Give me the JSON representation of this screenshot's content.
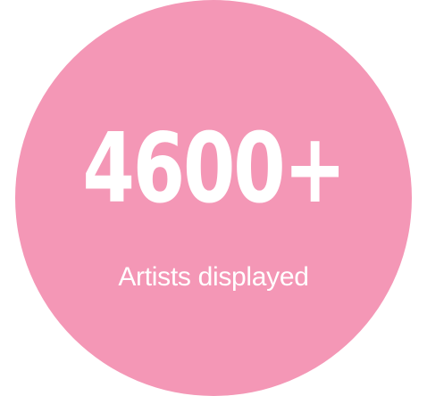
{
  "stat": {
    "number": "4600+",
    "label": "Artists displayed"
  },
  "colors": {
    "circle": "#f497b6",
    "text": "#ffffff",
    "background": "#ffffff"
  }
}
